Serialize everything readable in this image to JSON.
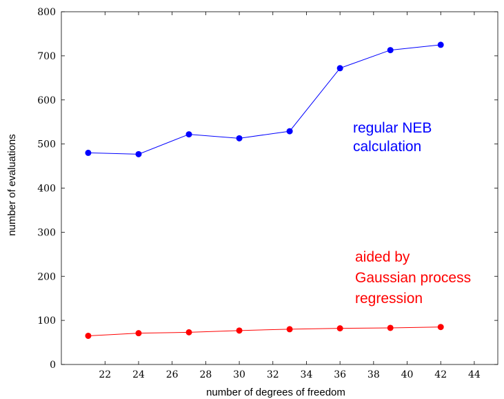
{
  "chart_data": {
    "type": "line",
    "xlabel": "number of degrees of freedom",
    "ylabel": "number of evaluations",
    "xlim": [
      19.4,
      45.4
    ],
    "ylim": [
      0,
      800
    ],
    "xticks": [
      22,
      24,
      26,
      28,
      30,
      32,
      34,
      36,
      38,
      40,
      42,
      44
    ],
    "yticks": [
      0,
      100,
      200,
      300,
      400,
      500,
      600,
      700,
      800
    ],
    "grid": false,
    "series": [
      {
        "color": "#0000ff",
        "x": [
          21,
          24,
          27,
          30,
          33,
          36,
          39,
          42
        ],
        "y": [
          480,
          477,
          522,
          513,
          529,
          672,
          713,
          725
        ]
      },
      {
        "color": "#ff0000",
        "x": [
          21,
          24,
          27,
          30,
          33,
          36,
          39,
          42
        ],
        "y": [
          65,
          71,
          73,
          77,
          80,
          82,
          83,
          85
        ]
      }
    ],
    "annotations": [
      {
        "lines": [
          "regular NEB",
          "calculation"
        ],
        "color": "#0000ff"
      },
      {
        "lines": [
          "aided by",
          "Gaussian process",
          "regression"
        ],
        "color": "#ff0000"
      }
    ]
  }
}
